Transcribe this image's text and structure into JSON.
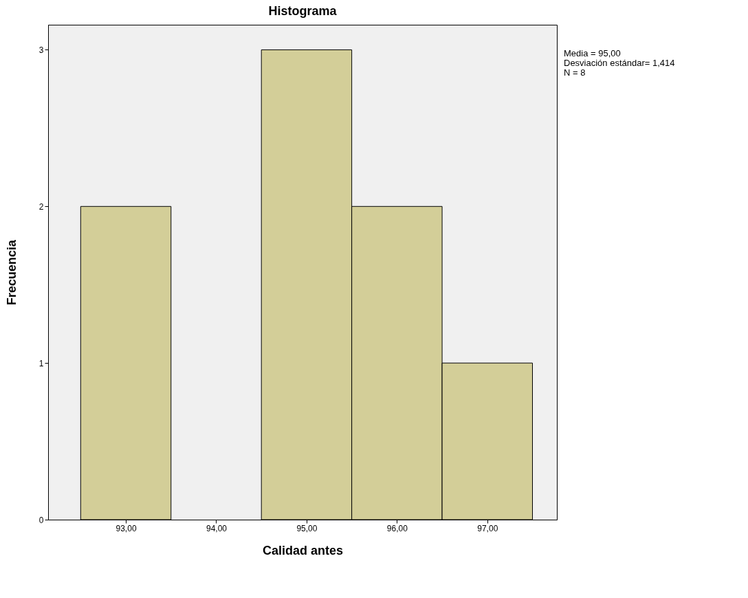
{
  "chart_data": {
    "type": "histogram",
    "title": "Histograma",
    "xlabel": "Calidad antes",
    "ylabel": "Frecuencia",
    "bins": [
      92.5,
      93.5,
      94.5,
      95.5,
      96.5,
      97.5
    ],
    "values": [
      2,
      0,
      3,
      2,
      1
    ],
    "color": "#d3ce98",
    "xlim": [
      92.14,
      97.77
    ],
    "xticks": [
      {
        "value": 93,
        "label": "93,00"
      },
      {
        "value": 94,
        "label": "94,00"
      },
      {
        "value": 95,
        "label": "95,00"
      },
      {
        "value": 96,
        "label": "96,00"
      },
      {
        "value": 97,
        "label": "97,00"
      }
    ],
    "ylim": [
      0,
      3.16
    ],
    "yticks": [
      0,
      1,
      2,
      3
    ],
    "grid": false,
    "annotations": [
      "Media = 95,00",
      "Desviación estándar= 1,414",
      "N = 8"
    ]
  }
}
